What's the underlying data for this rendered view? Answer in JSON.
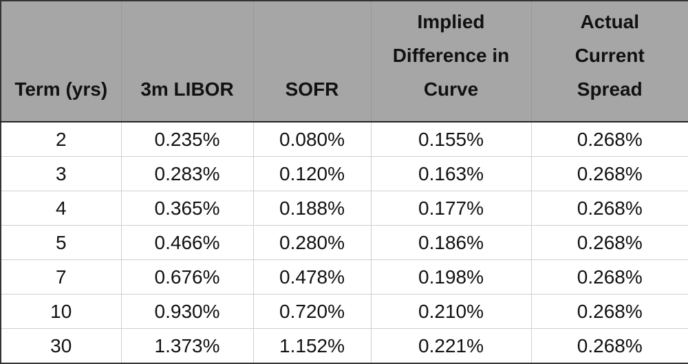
{
  "table": {
    "headers": [
      "Term (yrs)",
      "3m LIBOR",
      "SOFR",
      "Implied Difference in Curve",
      "Actual Current Spread"
    ],
    "rows": [
      [
        "2",
        "0.235%",
        "0.080%",
        "0.155%",
        "0.268%"
      ],
      [
        "3",
        "0.283%",
        "0.120%",
        "0.163%",
        "0.268%"
      ],
      [
        "4",
        "0.365%",
        "0.188%",
        "0.177%",
        "0.268%"
      ],
      [
        "5",
        "0.466%",
        "0.280%",
        "0.186%",
        "0.268%"
      ],
      [
        "7",
        "0.676%",
        "0.478%",
        "0.198%",
        "0.268%"
      ],
      [
        "10",
        "0.930%",
        "0.720%",
        "0.210%",
        "0.268%"
      ],
      [
        "30",
        "1.373%",
        "1.152%",
        "0.221%",
        "0.268%"
      ]
    ]
  }
}
